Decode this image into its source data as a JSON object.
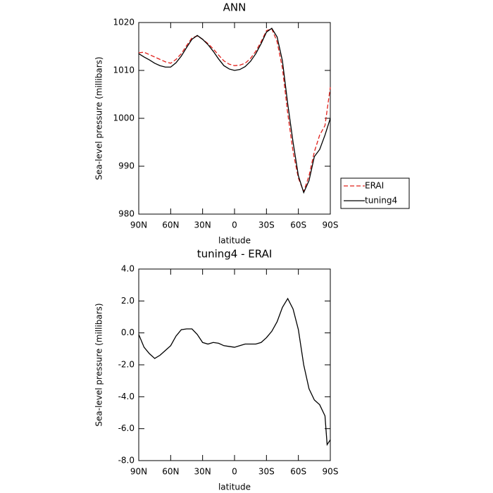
{
  "chart_data": [
    {
      "type": "line",
      "title": "ANN",
      "x_label": "latitude",
      "y_label": "Sea-level pressure (millibars)",
      "x": [
        90,
        85,
        80,
        75,
        70,
        65,
        60,
        55,
        50,
        45,
        40,
        35,
        30,
        25,
        20,
        15,
        10,
        5,
        0,
        -5,
        -10,
        -15,
        -20,
        -25,
        -30,
        -35,
        -40,
        -45,
        -50,
        -55,
        -60,
        -65,
        -70,
        -75,
        -80,
        -85,
        -90
      ],
      "series": [
        {
          "name": "ERAI",
          "color": "#e0201b",
          "dash": true,
          "values": [
            1013.7,
            1013.8,
            1013.3,
            1012.8,
            1012.3,
            1011.8,
            1011.5,
            1012.3,
            1013.5,
            1015.2,
            1016.8,
            1017.2,
            1016.5,
            1015.6,
            1014.5,
            1013.2,
            1012,
            1011.3,
            1011,
            1011.1,
            1011.5,
            1012.5,
            1014,
            1016,
            1018.3,
            1018.7,
            1016,
            1010.5,
            1001,
            993,
            987.5,
            984.7,
            988,
            993,
            996.5,
            998.5,
            1006.5
          ]
        },
        {
          "name": "tuning4",
          "color": "#000000",
          "dash": false,
          "values": [
            1013.5,
            1012.8,
            1012.2,
            1011.5,
            1011,
            1010.7,
            1010.7,
            1011.6,
            1013,
            1014.8,
            1016.5,
            1017.3,
            1016.5,
            1015.4,
            1014,
            1012.4,
            1011,
            1010.3,
            1010,
            1010.2,
            1010.8,
            1011.9,
            1013.5,
            1015.6,
            1018,
            1018.8,
            1017,
            1012,
            1003,
            995,
            988,
            984.5,
            987,
            992,
            993.5,
            996.5,
            1000
          ]
        }
      ],
      "xlim": [
        90,
        -90
      ],
      "xticks": [
        {
          "value": 90,
          "label": "90N"
        },
        {
          "value": 60,
          "label": "60N"
        },
        {
          "value": 30,
          "label": "30N"
        },
        0,
        {
          "value": -30,
          "label": "30S"
        },
        {
          "value": -60,
          "label": "60S"
        },
        {
          "value": -90,
          "label": "90S"
        }
      ],
      "ylim": [
        980,
        1020
      ],
      "yticks": [
        980,
        990,
        1000,
        1010,
        1020
      ],
      "legend": "right"
    },
    {
      "type": "line",
      "title": "tuning4 - ERAI",
      "x_label": "latitude",
      "y_label": "Sea-level pressure (millibars)",
      "x": [
        90,
        85,
        80,
        75,
        70,
        65,
        60,
        55,
        50,
        45,
        40,
        35,
        30,
        25,
        20,
        15,
        10,
        5,
        0,
        -5,
        -10,
        -15,
        -20,
        -25,
        -30,
        -35,
        -40,
        -45,
        -50,
        -55,
        -60,
        -65,
        -70,
        -75,
        -80,
        -85,
        -87,
        -90
      ],
      "values": [
        -0.1,
        -0.9,
        -1.3,
        -1.6,
        -1.4,
        -1.1,
        -0.8,
        -0.2,
        0.2,
        0.25,
        0.25,
        -0.1,
        -0.6,
        -0.7,
        -0.6,
        -0.65,
        -0.8,
        -0.85,
        -0.9,
        -0.8,
        -0.7,
        -0.7,
        -0.7,
        -0.6,
        -0.3,
        0.1,
        0.7,
        1.6,
        2.15,
        1.5,
        0.2,
        -2.0,
        -3.5,
        -4.2,
        -4.5,
        -5.2,
        -7.0,
        -6.7
      ],
      "color": "#000000",
      "xlim": [
        90,
        -90
      ],
      "xticks": [
        {
          "value": 90,
          "label": "90N"
        },
        {
          "value": 60,
          "label": "60N"
        },
        {
          "value": 30,
          "label": "30N"
        },
        0,
        {
          "value": -30,
          "label": "30S"
        },
        {
          "value": -60,
          "label": "60S"
        },
        {
          "value": -90,
          "label": "90S"
        }
      ],
      "ylim": [
        -8,
        4
      ],
      "yticks": [
        {
          "value": -8,
          "label": "-8.0"
        },
        {
          "value": -6,
          "label": "-6.0"
        },
        {
          "value": -4,
          "label": "-4.0"
        },
        {
          "value": -2,
          "label": "-2.0"
        },
        {
          "value": 0,
          "label": "0.0"
        },
        {
          "value": 2,
          "label": "2.0"
        },
        {
          "value": 4,
          "label": "4.0"
        }
      ]
    }
  ]
}
